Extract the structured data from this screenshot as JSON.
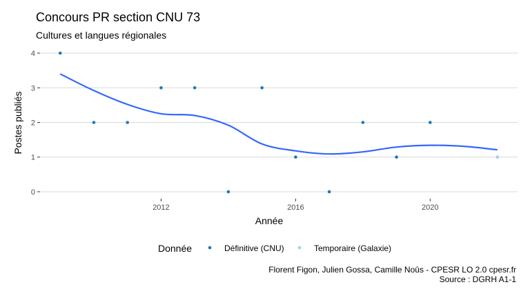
{
  "title": "Concours PR section CNU 73",
  "subtitle": "Cultures et langues régionales",
  "caption": {
    "line1": "Florent Figon, Julien Gossa, Camille Noûs - CPESR LO 2.0 cpesr.fr",
    "line2": "Source : DGRH A1-1"
  },
  "colors": {
    "definitive": "#1f78b4",
    "temporaire": "#a6cee3",
    "smooth": "#3366ff",
    "grid": "#d9d9d9"
  },
  "chart_data": {
    "type": "scatter",
    "title": "Concours PR section CNU 73",
    "subtitle": "Cultures et langues régionales",
    "xlabel": "Année",
    "ylabel": "Postes publiés",
    "xlim": [
      2008.4,
      2022.6
    ],
    "ylim": [
      -0.2,
      4.2
    ],
    "x_ticks": [
      2012,
      2016,
      2020
    ],
    "y_ticks": [
      0,
      1,
      2,
      3,
      4
    ],
    "grid": "horizontal major only",
    "legend": {
      "title": "Donnée",
      "position": "bottom",
      "entries": [
        "Définitive (CNU)",
        "Temporaire (Galaxie)"
      ]
    },
    "series": [
      {
        "name": "Définitive (CNU)",
        "color": "#1f78b4",
        "points": [
          {
            "x": 2009,
            "y": 4
          },
          {
            "x": 2010,
            "y": 2
          },
          {
            "x": 2011,
            "y": 2
          },
          {
            "x": 2012,
            "y": 3
          },
          {
            "x": 2013,
            "y": 3
          },
          {
            "x": 2014,
            "y": 0
          },
          {
            "x": 2015,
            "y": 3
          },
          {
            "x": 2016,
            "y": 1
          },
          {
            "x": 2017,
            "y": 0
          },
          {
            "x": 2018,
            "y": 2
          },
          {
            "x": 2019,
            "y": 1
          },
          {
            "x": 2020,
            "y": 2
          }
        ]
      },
      {
        "name": "Temporaire (Galaxie)",
        "color": "#a6cee3",
        "points": [
          {
            "x": 2022,
            "y": 1
          }
        ]
      }
    ],
    "smooth_curve": {
      "color": "#3366ff",
      "points": [
        {
          "x": 2009,
          "y": 3.4
        },
        {
          "x": 2010,
          "y": 2.92
        },
        {
          "x": 2011,
          "y": 2.52
        },
        {
          "x": 2012,
          "y": 2.25
        },
        {
          "x": 2013,
          "y": 2.2
        },
        {
          "x": 2014,
          "y": 1.92
        },
        {
          "x": 2015,
          "y": 1.38
        },
        {
          "x": 2016,
          "y": 1.18
        },
        {
          "x": 2017,
          "y": 1.09
        },
        {
          "x": 2018,
          "y": 1.15
        },
        {
          "x": 2019,
          "y": 1.29
        },
        {
          "x": 2020,
          "y": 1.34
        },
        {
          "x": 2021,
          "y": 1.31
        },
        {
          "x": 2022,
          "y": 1.21
        }
      ]
    }
  }
}
